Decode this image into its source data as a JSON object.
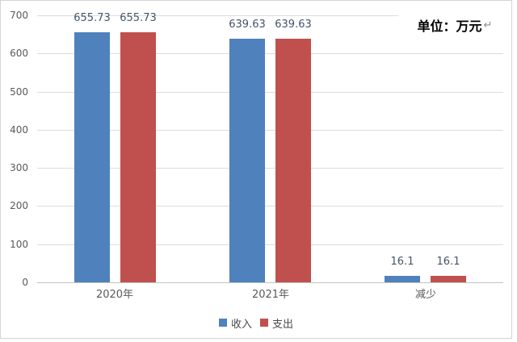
{
  "unit_label": {
    "text": "单位：万元",
    "return_mark": "↵"
  },
  "colors": {
    "income": "#4F81BD",
    "expense": "#C0504D",
    "grid": "#DCDCDC",
    "axis": "#C3C3C3",
    "tick_label": "#595959",
    "data_label": "#44546A",
    "frame_border": "#D4D4D4"
  },
  "chart_data": {
    "type": "bar",
    "categories": [
      "2020年",
      "2021年",
      "减少"
    ],
    "series": [
      {
        "name": "收入",
        "color": "#4F81BD",
        "values": [
          655.73,
          639.63,
          16.1
        ]
      },
      {
        "name": "支出",
        "color": "#C0504D",
        "values": [
          655.73,
          639.63,
          16.1
        ]
      }
    ],
    "data_labels": [
      [
        "655.73",
        "639.63",
        "16.1"
      ],
      [
        "655.73",
        "639.63",
        "16.1"
      ]
    ],
    "title": "",
    "xlabel": "",
    "ylabel": "",
    "ylim": [
      0,
      700
    ],
    "yticks": [
      0,
      100,
      200,
      300,
      400,
      500,
      600,
      700
    ],
    "grid": true,
    "legend_position": "bottom",
    "annotation": "单位：万元"
  }
}
